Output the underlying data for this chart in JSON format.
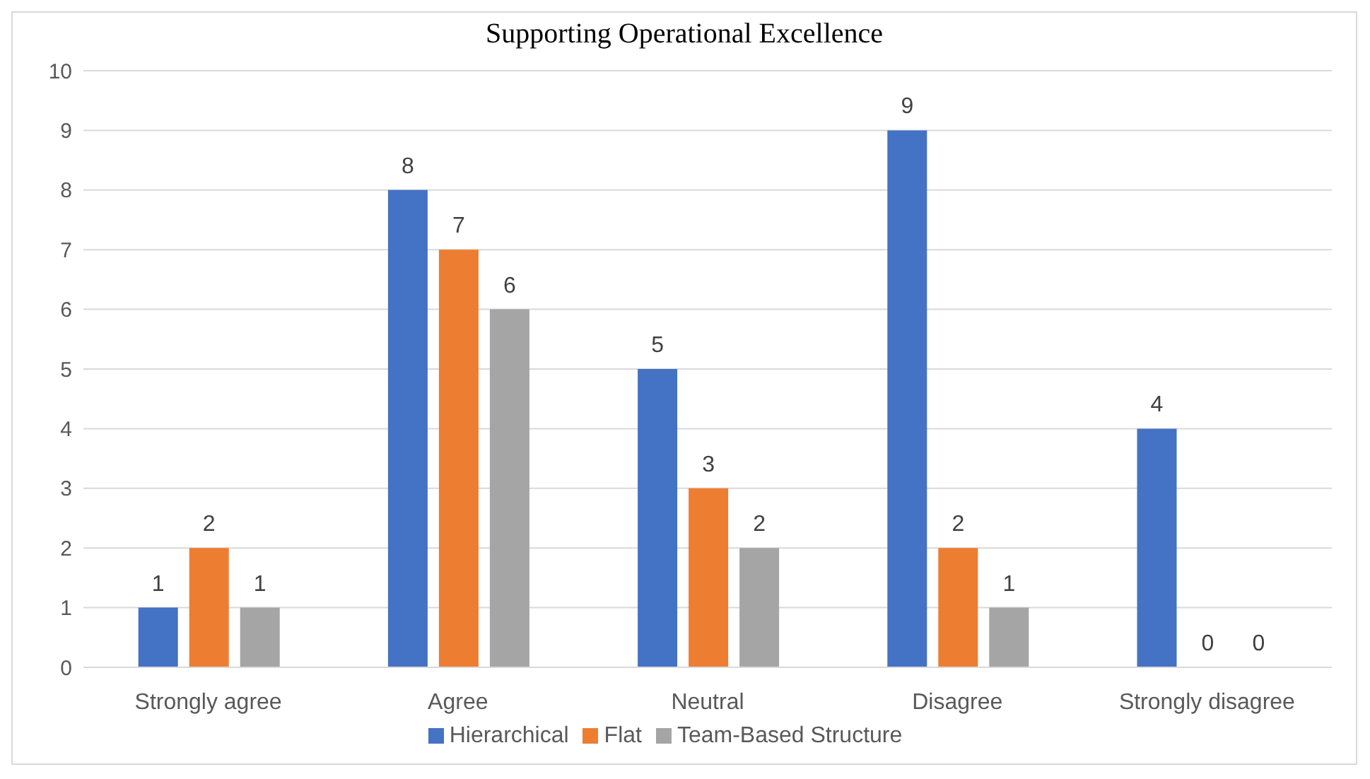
{
  "chart_data": {
    "type": "bar",
    "title": "Supporting Operational Excellence",
    "categories": [
      "Strongly agree",
      "Agree",
      "Neutral",
      "Disagree",
      "Strongly disagree"
    ],
    "series": [
      {
        "name": "Hierarchical",
        "color": "#4472c4",
        "values": [
          1,
          8,
          5,
          9,
          4
        ]
      },
      {
        "name": "Flat",
        "color": "#ed7d31",
        "values": [
          2,
          7,
          3,
          2,
          0
        ]
      },
      {
        "name": "Team-Based Structure",
        "color": "#a5a5a5",
        "values": [
          1,
          6,
          2,
          1,
          0
        ]
      }
    ],
    "ylim": [
      0,
      10
    ],
    "yticks": [
      0,
      1,
      2,
      3,
      4,
      5,
      6,
      7,
      8,
      9,
      10
    ],
    "grid": "y",
    "legend": "bottom",
    "data_labels": true
  }
}
